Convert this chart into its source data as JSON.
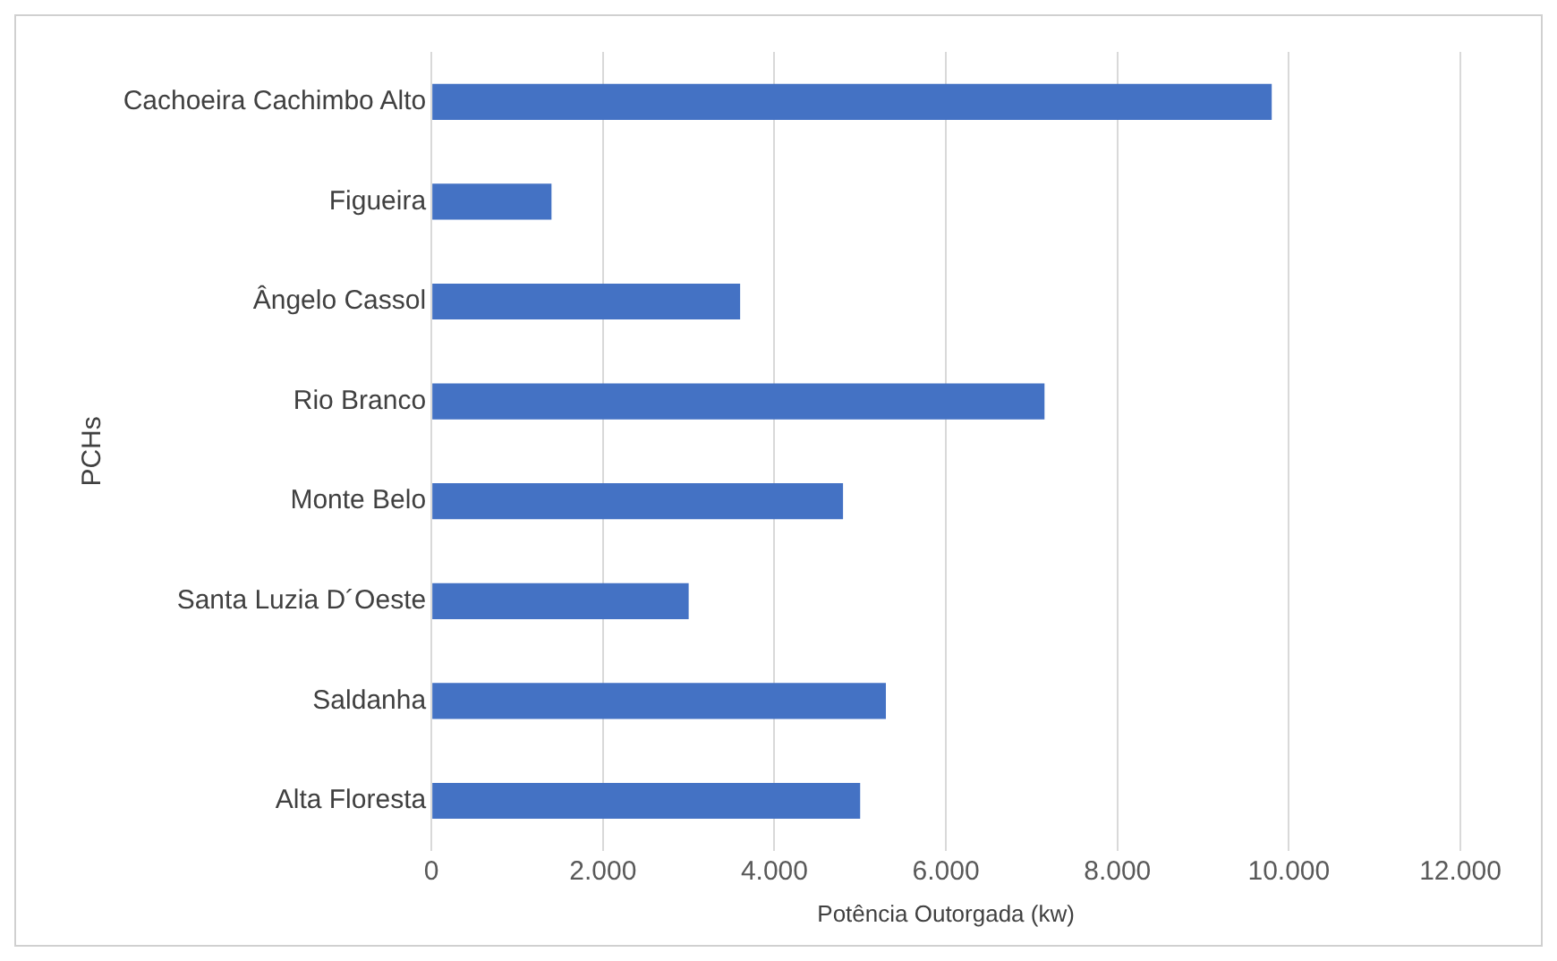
{
  "chart_data": {
    "type": "bar",
    "orientation": "horizontal",
    "xlabel": "Potência Outorgada (kw)",
    "ylabel": "PCHs",
    "categories": [
      "Cachoeira Cachimbo Alto",
      "Figueira",
      "Ângelo Cassol",
      "Rio Branco",
      "Monte Belo",
      "Santa Luzia D´Oeste",
      "Saldanha",
      "Alta Floresta"
    ],
    "series": [
      {
        "color": "#4472c4",
        "values": [
          9800,
          1400,
          3600,
          7150,
          4800,
          3000,
          5300,
          5000
        ]
      }
    ],
    "xlim": [
      0,
      12000
    ],
    "xticks": [
      0,
      {
        "value": 2000,
        "label": "2.000"
      },
      {
        "value": 4000,
        "label": "4.000"
      },
      {
        "value": 6000,
        "label": "6.000"
      },
      {
        "value": 8000,
        "label": "8.000"
      },
      {
        "value": 10000,
        "label": "10.000"
      },
      {
        "value": 12000,
        "label": "12.000"
      }
    ],
    "grid": "x",
    "legend": false
  }
}
